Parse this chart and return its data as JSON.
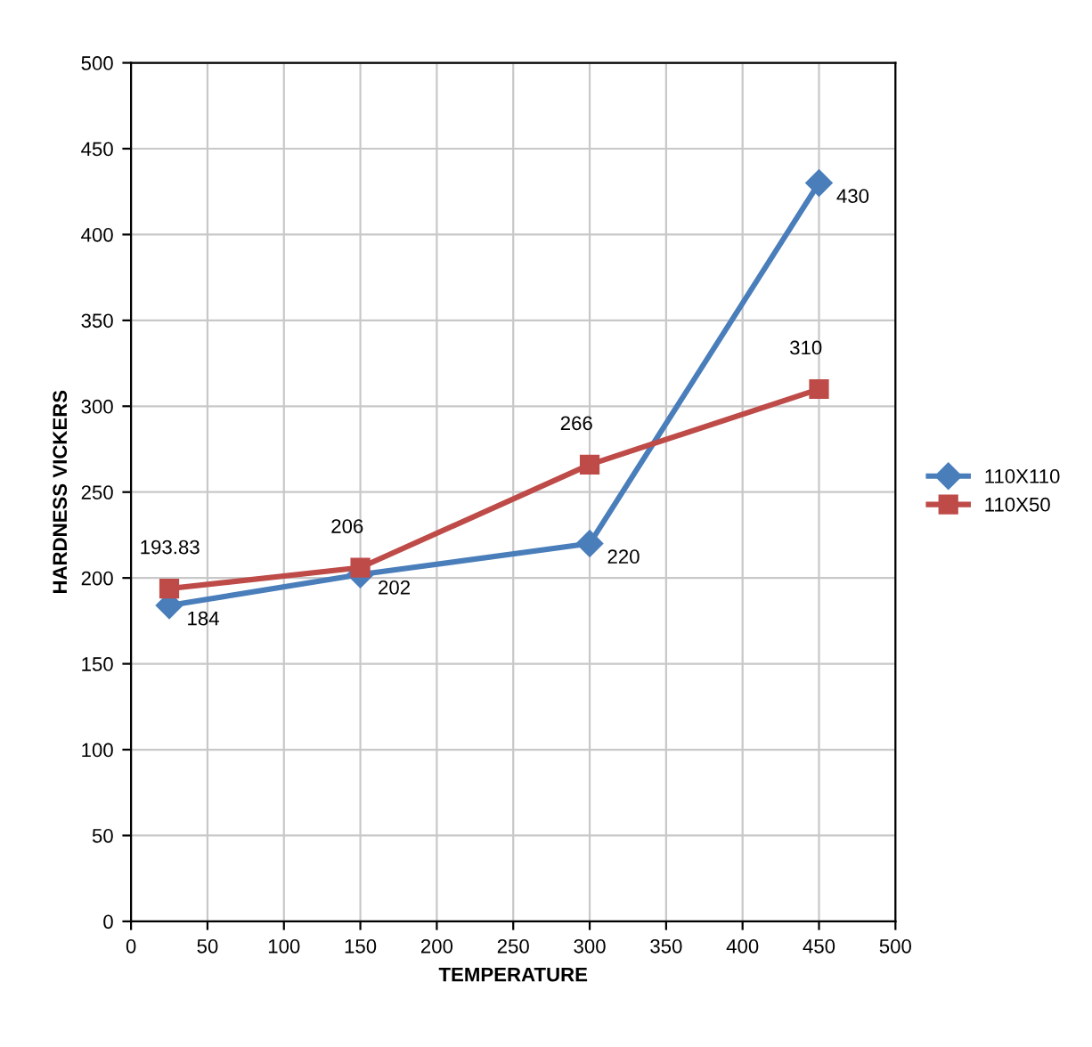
{
  "chart_data": {
    "type": "line",
    "xlabel": "TEMPERATURE",
    "ylabel": "HARDNESS VICKERS",
    "xlim": [
      0,
      500
    ],
    "xticks": [
      0,
      50,
      100,
      150,
      200,
      250,
      300,
      350,
      400,
      450,
      500
    ],
    "ylim": [
      0,
      500
    ],
    "yticks": [
      0,
      50,
      100,
      150,
      200,
      250,
      300,
      350,
      400,
      450,
      500
    ],
    "grid": true,
    "legend": "right",
    "data_labels": true,
    "line_style": "solid",
    "series": [
      {
        "name": "110X110",
        "color": "#4a7ebb",
        "marker": "diamond",
        "x": [
          25,
          150,
          300,
          450
        ],
        "values": [
          184,
          202,
          220,
          430
        ]
      },
      {
        "name": "110X50",
        "color": "#be4b48",
        "marker": "square",
        "x": [
          25,
          150,
          300,
          450
        ],
        "values": [
          193.83,
          206,
          266,
          310
        ]
      }
    ]
  }
}
